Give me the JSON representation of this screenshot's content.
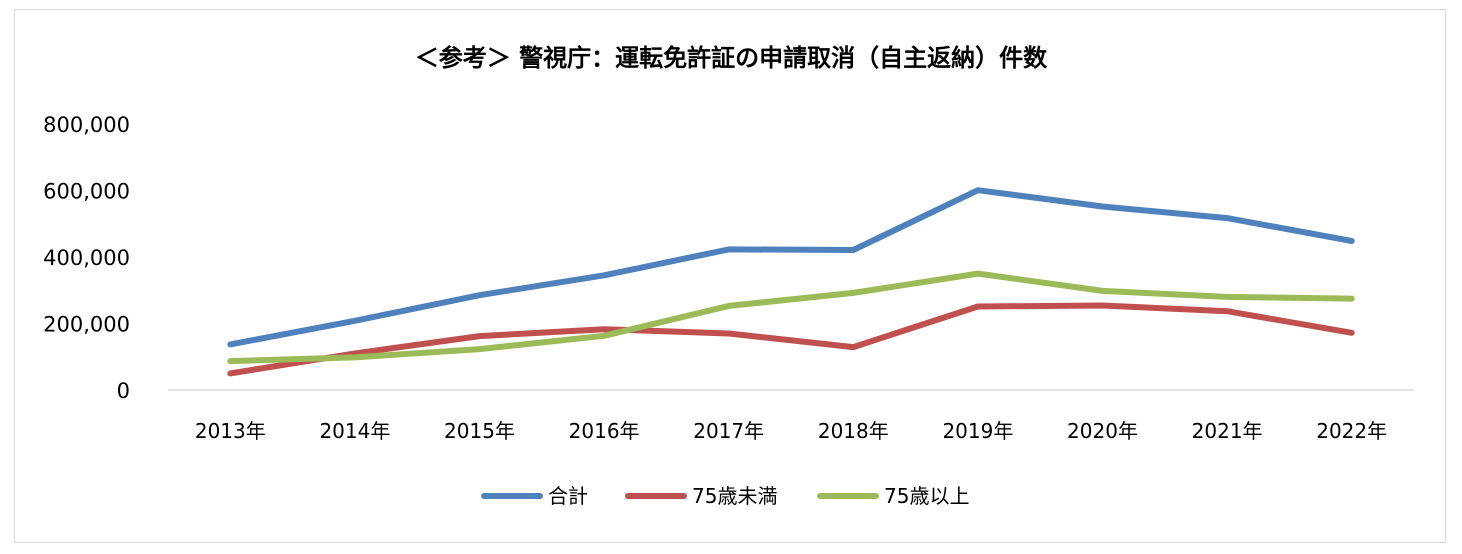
{
  "chart_data": {
    "type": "line",
    "title": "＜参考＞ 警視庁：運転免許証の申請取消（自主返納）件数",
    "xlabel": "",
    "ylabel": "",
    "categories": [
      "2013年",
      "2014年",
      "2015年",
      "2016年",
      "2017年",
      "2018年",
      "2019年",
      "2020年",
      "2021年",
      "2022年"
    ],
    "series": [
      {
        "name": "合計",
        "color": "#4f81bd",
        "values": [
          137000,
          208000,
          285000,
          345000,
          423000,
          421000,
          601000,
          552000,
          517000,
          448000
        ]
      },
      {
        "name": "75歳未満",
        "color": "#c0504d",
        "values": [
          50000,
          110000,
          162000,
          183000,
          170000,
          129000,
          251000,
          254000,
          237000,
          172000
        ]
      },
      {
        "name": "75歳以上",
        "color": "#9bbb59",
        "values": [
          87000,
          98000,
          123000,
          163000,
          253000,
          292000,
          350000,
          298000,
          280000,
          275000
        ]
      }
    ],
    "ylim": [
      0,
      800000
    ],
    "yticks": [
      0,
      200000,
      400000,
      600000,
      800000
    ],
    "ytick_labels": [
      "0",
      "200,000",
      "400,000",
      "600,000",
      "800,000"
    ],
    "grid": false,
    "legend_position": "bottom"
  }
}
